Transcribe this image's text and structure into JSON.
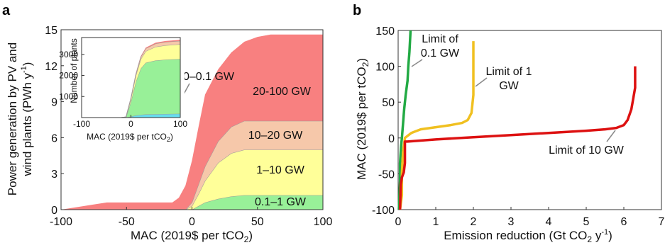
{
  "panels": {
    "a": {
      "label": "a"
    },
    "b": {
      "label": "b"
    }
  },
  "chart_data": [
    {
      "type": "area",
      "panel": "a",
      "title": "",
      "xlabel_parts": [
        "MAC (2019$ per tCO",
        "2",
        ")"
      ],
      "ylabel_line1": "Power generation by PV and",
      "ylabel_line2_parts": [
        "wind plants (PWh y",
        "-1",
        ")"
      ],
      "xlim": [
        -100,
        100
      ],
      "ylim": [
        0,
        15
      ],
      "x_ticks": [
        -100,
        -50,
        0,
        50,
        100
      ],
      "y_ticks": [
        0,
        3,
        6,
        9,
        12,
        15
      ],
      "x": [
        -100,
        -65,
        -60,
        -30,
        -15,
        -10,
        -5,
        0,
        5,
        10,
        20,
        30,
        40,
        50,
        60,
        80,
        100
      ],
      "series": [
        {
          "name": "0.1–1 GW",
          "color": "#98f098",
          "values": [
            0,
            0,
            0,
            0,
            0,
            0,
            0,
            0,
            0.3,
            0.6,
            0.9,
            1.1,
            1.2,
            1.2,
            1.2,
            1.2,
            1.2
          ]
        },
        {
          "name": "1–10 GW",
          "color": "#ffff99",
          "values": [
            0,
            0,
            0,
            0,
            0,
            0,
            0,
            0.3,
            1.0,
            1.8,
            3.0,
            3.6,
            3.8,
            3.8,
            3.8,
            3.8,
            3.8
          ]
        },
        {
          "name": "10–20 GW",
          "color": "#f6c8aa",
          "values": [
            0,
            0,
            0,
            0,
            0,
            0,
            0,
            0.3,
            0.8,
            1.2,
            1.8,
            2.2,
            2.4,
            2.4,
            2.4,
            2.4,
            2.4
          ]
        },
        {
          "name": "20-100 GW",
          "color": "#f88080",
          "values": [
            0,
            0.6,
            0.6,
            0.6,
            0.6,
            1.0,
            2.0,
            3.5,
            4.8,
            6.0,
            6.0,
            6.2,
            6.6,
            7.0,
            7.2,
            7.2,
            7.2
          ]
        }
      ],
      "annotations": [
        {
          "text": "0–0.1 GW"
        },
        {
          "text": "20-100 GW"
        },
        {
          "text": "10–20 GW"
        },
        {
          "text": "1–10 GW"
        },
        {
          "text": "0.1–1 GW"
        }
      ],
      "inset": {
        "type": "area",
        "xlabel_parts": [
          "MAC (2019$ per tCO",
          "2",
          ")"
        ],
        "ylabel": "Number of plants",
        "xlim": [
          -100,
          100
        ],
        "ylim": [
          0,
          3800
        ],
        "x_ticks": [
          -100,
          0,
          100
        ],
        "y_ticks": [
          1000,
          2000,
          3000
        ],
        "x": [
          -100,
          -20,
          -10,
          0,
          10,
          20,
          30,
          50,
          70,
          100
        ],
        "series": [
          {
            "name": "0–0.1 GW",
            "color": "#66ddee",
            "values": [
              0,
              0,
              0,
              50,
              100,
              130,
              150,
              160,
              170,
              180
            ]
          },
          {
            "name": "0.1–1 GW",
            "color": "#98f098",
            "values": [
              0,
              0,
              20,
              700,
              1600,
              2200,
              2450,
              2550,
              2580,
              2600
            ]
          },
          {
            "name": "1–10 GW",
            "color": "#ffff99",
            "values": [
              0,
              0,
              10,
              150,
              300,
              450,
              550,
              650,
              680,
              700
            ]
          },
          {
            "name": "10–20 GW",
            "color": "#f6c8aa",
            "values": [
              0,
              0,
              0,
              30,
              60,
              100,
              130,
              150,
              160,
              160
            ]
          },
          {
            "name": "20-100 GW",
            "color": "#f88080",
            "values": [
              0,
              0,
              0,
              10,
              20,
              30,
              40,
              45,
              48,
              50
            ]
          }
        ]
      }
    },
    {
      "type": "line",
      "panel": "b",
      "title": "",
      "xlabel_parts": [
        "Emission reduction (Gt CO",
        "2",
        " y",
        "-1",
        ")"
      ],
      "ylabel_parts": [
        "MAC (2019$ per tCO",
        "2",
        ")"
      ],
      "xlim": [
        0,
        7
      ],
      "ylim": [
        -100,
        150
      ],
      "x_ticks": [
        0,
        1,
        2,
        3,
        4,
        5,
        6,
        7
      ],
      "y_ticks": [
        -100,
        -50,
        0,
        50,
        100,
        150
      ],
      "series": [
        {
          "name": "Limit of 0.1 GW",
          "color": "#22aa44",
          "x": [
            0.02,
            0.05,
            0.05,
            0.08,
            0.1,
            0.13,
            0.16,
            0.2,
            0.25,
            0.27,
            0.3,
            0.33
          ],
          "y": [
            -100,
            -60,
            -35,
            -10,
            0,
            20,
            40,
            60,
            80,
            100,
            120,
            150
          ]
        },
        {
          "name": "Limit of 1 GW",
          "color": "#f0c020",
          "x": [
            0.05,
            0.1,
            0.1,
            0.13,
            0.18,
            0.35,
            0.6,
            1.0,
            1.4,
            1.7,
            1.85,
            1.95,
            2.0,
            2.0
          ],
          "y": [
            -100,
            -80,
            -50,
            -20,
            0,
            7,
            12,
            15,
            18,
            21,
            25,
            35,
            60,
            135
          ]
        },
        {
          "name": "Limit of 10 GW",
          "color": "#dd1111",
          "x": [
            0.05,
            0.07,
            0.1,
            0.15,
            0.18,
            0.18,
            0.25,
            0.5,
            1.0,
            2.0,
            3.0,
            4.0,
            5.0,
            5.5,
            5.8,
            6.0,
            6.1,
            6.2,
            6.25,
            6.3,
            6.3
          ],
          "y": [
            -100,
            -65,
            -55,
            -48,
            -35,
            -5,
            -5,
            -4,
            -2,
            1,
            4,
            7,
            10,
            12,
            14,
            18,
            25,
            40,
            55,
            70,
            100
          ]
        }
      ],
      "annotations": [
        {
          "line1": "Limit of",
          "line2": "0.1 GW",
          "color": "#22aa44"
        },
        {
          "line1": "Limit of 1",
          "line2": "GW",
          "color": "#f0c020"
        },
        {
          "line1": "Limit of 10 GW",
          "color": "#dd1111"
        }
      ]
    }
  ]
}
